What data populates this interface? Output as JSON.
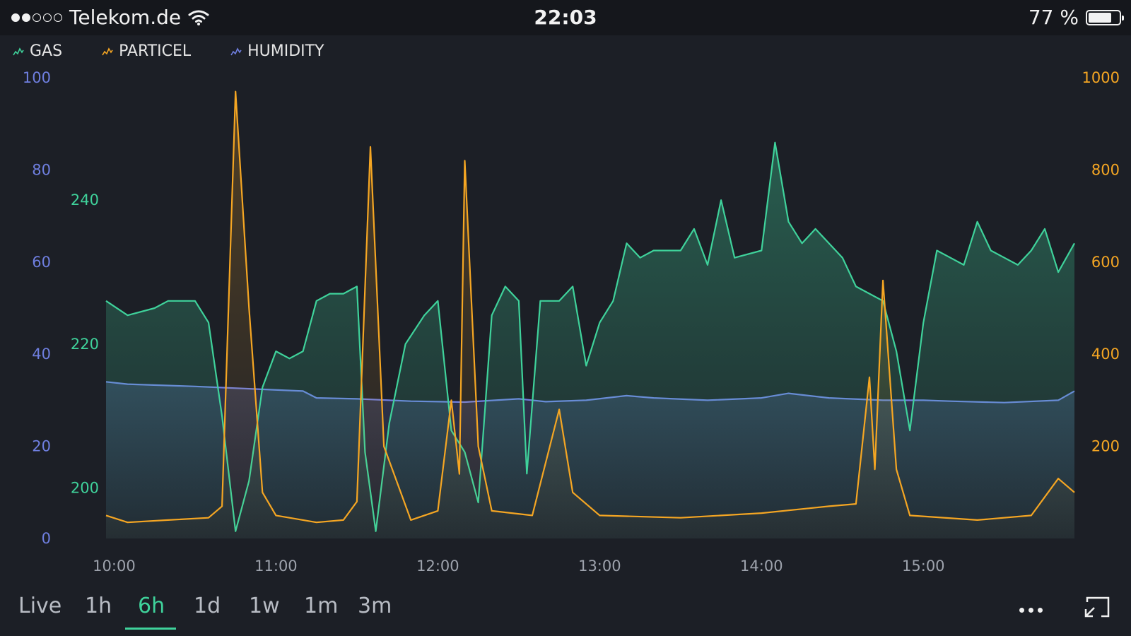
{
  "status_bar": {
    "carrier": "Telekom.de",
    "time": "22:03",
    "battery_percent": "77 %",
    "battery_level": 0.77,
    "signal_bars_filled": 2,
    "signal_bars_total": 5
  },
  "legend": [
    {
      "label": "GAS",
      "color": "#3fd29b",
      "icon": "line-chart-icon"
    },
    {
      "label": "PARTICEL",
      "color": "#f5a623",
      "icon": "line-chart-icon"
    },
    {
      "label": "HUMIDITY",
      "color": "#6f7fe0",
      "icon": "line-chart-icon"
    }
  ],
  "range_buttons": [
    {
      "label": "Live",
      "active": false
    },
    {
      "label": "1h",
      "active": false
    },
    {
      "label": "6h",
      "active": true
    },
    {
      "label": "1d",
      "active": false
    },
    {
      "label": "1w",
      "active": false
    },
    {
      "label": "1m",
      "active": false
    },
    {
      "label": "3m",
      "active": false
    }
  ],
  "chart_data": {
    "type": "line",
    "x_ticks": [
      "10:00",
      "11:00",
      "12:00",
      "13:00",
      "14:00",
      "15:00"
    ],
    "x_range": [
      "09:57",
      "15:56"
    ],
    "axes": {
      "humidity": {
        "ticks": [
          "100",
          "80",
          "60",
          "40",
          "20",
          "0"
        ],
        "range": [
          0,
          100
        ],
        "color": "#6f7fe0"
      },
      "gas": {
        "ticks": [
          "240",
          "220",
          "200"
        ],
        "range": [
          193,
          257
        ],
        "color": "#3fd29b"
      },
      "particel": {
        "ticks": [
          "1000",
          "800",
          "600",
          "400",
          "200"
        ],
        "range": [
          0,
          1000
        ],
        "color": "#f5a623"
      }
    },
    "series": [
      {
        "name": "GAS",
        "axis": "gas",
        "color": "#3fd29b",
        "points": [
          [
            "09:57",
            226
          ],
          [
            "10:05",
            224
          ],
          [
            "10:15",
            225
          ],
          [
            "10:20",
            226
          ],
          [
            "10:30",
            226
          ],
          [
            "10:35",
            223
          ],
          [
            "10:40",
            210
          ],
          [
            "10:45",
            194
          ],
          [
            "10:50",
            201
          ],
          [
            "10:55",
            214
          ],
          [
            "11:00",
            219
          ],
          [
            "11:05",
            218
          ],
          [
            "11:10",
            219
          ],
          [
            "11:15",
            226
          ],
          [
            "11:20",
            227
          ],
          [
            "11:25",
            227
          ],
          [
            "11:30",
            228
          ],
          [
            "11:33",
            205
          ],
          [
            "11:37",
            194
          ],
          [
            "11:42",
            209
          ],
          [
            "11:48",
            220
          ],
          [
            "11:55",
            224
          ],
          [
            "12:00",
            226
          ],
          [
            "12:05",
            208
          ],
          [
            "12:10",
            205
          ],
          [
            "12:15",
            198
          ],
          [
            "12:20",
            224
          ],
          [
            "12:25",
            228
          ],
          [
            "12:30",
            226
          ],
          [
            "12:33",
            202
          ],
          [
            "12:38",
            226
          ],
          [
            "12:45",
            226
          ],
          [
            "12:50",
            228
          ],
          [
            "12:55",
            217
          ],
          [
            "13:00",
            223
          ],
          [
            "13:05",
            226
          ],
          [
            "13:10",
            234
          ],
          [
            "13:15",
            232
          ],
          [
            "13:20",
            233
          ],
          [
            "13:30",
            233
          ],
          [
            "13:35",
            236
          ],
          [
            "13:40",
            231
          ],
          [
            "13:45",
            240
          ],
          [
            "13:50",
            232
          ],
          [
            "14:00",
            233
          ],
          [
            "14:05",
            248
          ],
          [
            "14:10",
            237
          ],
          [
            "14:15",
            234
          ],
          [
            "14:20",
            236
          ],
          [
            "14:30",
            232
          ],
          [
            "14:35",
            228
          ],
          [
            "14:40",
            227
          ],
          [
            "14:45",
            226
          ],
          [
            "14:50",
            219
          ],
          [
            "14:55",
            208
          ],
          [
            "15:00",
            223
          ],
          [
            "15:05",
            233
          ],
          [
            "15:10",
            232
          ],
          [
            "15:15",
            231
          ],
          [
            "15:20",
            237
          ],
          [
            "15:25",
            233
          ],
          [
            "15:30",
            232
          ],
          [
            "15:35",
            231
          ],
          [
            "15:40",
            233
          ],
          [
            "15:45",
            236
          ],
          [
            "15:50",
            230
          ],
          [
            "15:56",
            234
          ]
        ]
      },
      {
        "name": "PARTICEL",
        "axis": "particel",
        "color": "#f5a623",
        "points": [
          [
            "09:57",
            50
          ],
          [
            "10:05",
            35
          ],
          [
            "10:20",
            40
          ],
          [
            "10:35",
            45
          ],
          [
            "10:40",
            70
          ],
          [
            "10:45",
            970
          ],
          [
            "10:50",
            500
          ],
          [
            "10:55",
            100
          ],
          [
            "11:00",
            50
          ],
          [
            "11:15",
            35
          ],
          [
            "11:25",
            40
          ],
          [
            "11:30",
            80
          ],
          [
            "11:35",
            850
          ],
          [
            "11:40",
            200
          ],
          [
            "11:50",
            40
          ],
          [
            "12:00",
            60
          ],
          [
            "12:05",
            300
          ],
          [
            "12:08",
            140
          ],
          [
            "12:10",
            820
          ],
          [
            "12:15",
            200
          ],
          [
            "12:20",
            60
          ],
          [
            "12:35",
            50
          ],
          [
            "12:45",
            280
          ],
          [
            "12:50",
            100
          ],
          [
            "13:00",
            50
          ],
          [
            "13:30",
            45
          ],
          [
            "14:00",
            55
          ],
          [
            "14:25",
            70
          ],
          [
            "14:35",
            75
          ],
          [
            "14:40",
            350
          ],
          [
            "14:42",
            150
          ],
          [
            "14:45",
            560
          ],
          [
            "14:50",
            150
          ],
          [
            "14:55",
            50
          ],
          [
            "15:20",
            40
          ],
          [
            "15:40",
            50
          ],
          [
            "15:50",
            130
          ],
          [
            "15:56",
            100
          ]
        ]
      },
      {
        "name": "HUMIDITY",
        "axis": "humidity",
        "color": "#6f7fe0",
        "points": [
          [
            "09:57",
            34
          ],
          [
            "10:05",
            33.5
          ],
          [
            "10:30",
            33
          ],
          [
            "10:50",
            32.5
          ],
          [
            "11:10",
            32
          ],
          [
            "11:15",
            30.5
          ],
          [
            "11:30",
            30.3
          ],
          [
            "11:50",
            29.8
          ],
          [
            "12:10",
            29.6
          ],
          [
            "12:30",
            30.3
          ],
          [
            "12:40",
            29.7
          ],
          [
            "12:55",
            30
          ],
          [
            "13:10",
            31
          ],
          [
            "13:20",
            30.5
          ],
          [
            "13:40",
            30
          ],
          [
            "14:00",
            30.5
          ],
          [
            "14:10",
            31.5
          ],
          [
            "14:25",
            30.5
          ],
          [
            "14:45",
            30
          ],
          [
            "15:00",
            30
          ],
          [
            "15:10",
            29.8
          ],
          [
            "15:30",
            29.5
          ],
          [
            "15:50",
            30
          ],
          [
            "15:56",
            32
          ]
        ]
      }
    ]
  }
}
